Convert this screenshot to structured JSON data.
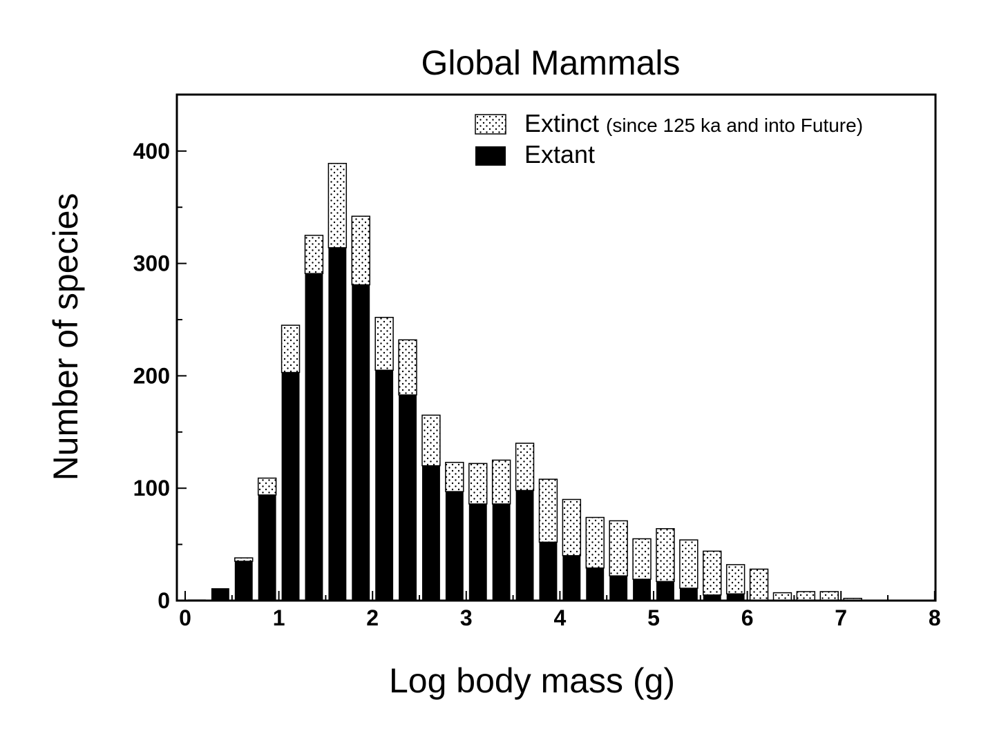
{
  "chart_data": {
    "type": "bar",
    "stacked": true,
    "title": "Global Mammals",
    "xlabel": "Log body mass (g)",
    "ylabel": "Number of species",
    "xlim": [
      0,
      8
    ],
    "ylim": [
      0,
      450
    ],
    "bin_width": 0.25,
    "x_ticks": [
      0,
      1,
      2,
      3,
      4,
      5,
      6,
      7,
      8
    ],
    "y_ticks": [
      0,
      100,
      200,
      300,
      400
    ],
    "x": [
      0.125,
      0.375,
      0.625,
      0.875,
      1.125,
      1.375,
      1.625,
      1.875,
      2.125,
      2.375,
      2.625,
      2.875,
      3.125,
      3.375,
      3.625,
      3.875,
      4.125,
      4.375,
      4.625,
      4.875,
      5.125,
      5.375,
      5.625,
      5.875,
      6.125,
      6.375,
      6.625,
      6.875,
      7.125
    ],
    "series": [
      {
        "name": "Extant",
        "fill": "solid",
        "values": [
          1,
          11,
          35,
          94,
          203,
          291,
          314,
          281,
          205,
          183,
          120,
          97,
          86,
          86,
          98,
          52,
          40,
          29,
          22,
          19,
          17,
          11,
          5,
          6,
          0,
          0,
          0,
          0,
          0
        ]
      },
      {
        "name": "Extinct",
        "fill": "dotted",
        "values": [
          0,
          0,
          3,
          15,
          42,
          34,
          75,
          61,
          47,
          49,
          45,
          26,
          36,
          39,
          42,
          56,
          50,
          45,
          49,
          36,
          47,
          43,
          39,
          26,
          28,
          7,
          8,
          8,
          2
        ]
      }
    ],
    "legend": {
      "placement": "top-right",
      "entries": [
        {
          "label": "Extinct",
          "note": "(since 125 ka and into Future)",
          "fill": "dotted"
        },
        {
          "label": "Extant",
          "note": "",
          "fill": "solid"
        }
      ]
    },
    "colors": {
      "extant": "#000000",
      "extinct_background": "#ffffff",
      "extinct_dots": "#000000",
      "frame": "#000000"
    },
    "grid": false
  }
}
